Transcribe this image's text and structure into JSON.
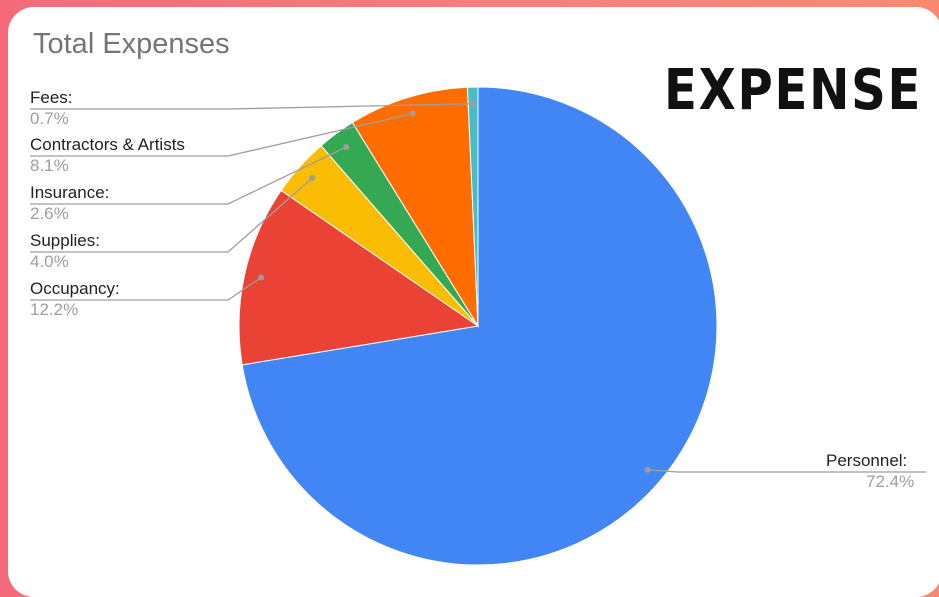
{
  "badge_text": "EXPENSE",
  "chart_data": {
    "type": "pie",
    "title": "Total Expenses",
    "slices": [
      {
        "label": "Personnel:",
        "value": "72.4%",
        "pct": 72.4,
        "color": "#4285f4"
      },
      {
        "label": "Occupancy:",
        "value": "12.2%",
        "pct": 12.2,
        "color": "#ea4335"
      },
      {
        "label": "Supplies:",
        "value": "4.0%",
        "pct": 4.0,
        "color": "#fbbc04"
      },
      {
        "label": "Insurance:",
        "value": "2.6%",
        "pct": 2.6,
        "color": "#34a853"
      },
      {
        "label": "Contractors & Artists",
        "value": "8.1%",
        "pct": 8.1,
        "color": "#ff6d01"
      },
      {
        "label": "Fees:",
        "value": "0.7%",
        "pct": 0.7,
        "color": "#46bdc6"
      }
    ],
    "legend": "callout labels"
  }
}
